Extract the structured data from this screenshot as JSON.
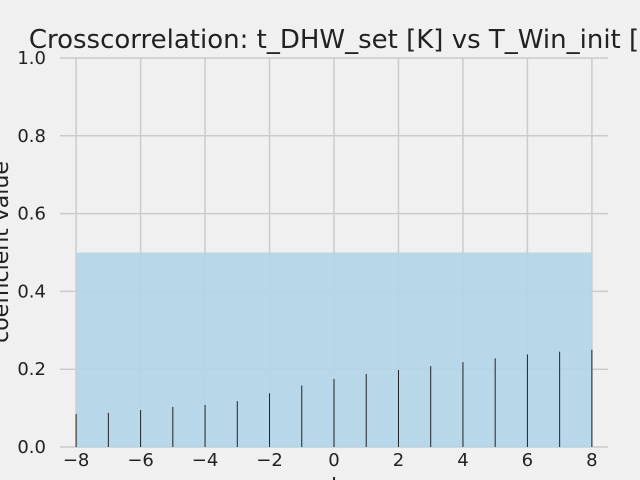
{
  "chart_data": {
    "type": "bar",
    "title": "Crosscorrelation: t_DHW_set [K] vs T_Win_init [",
    "xlabel": "l",
    "ylabel": "coefficient value",
    "xlim": [
      -8.5,
      8.5
    ],
    "ylim": [
      0,
      1.0
    ],
    "x": [
      -8,
      -7,
      -6,
      -5,
      -4,
      -3,
      -2,
      -1,
      0,
      1,
      2,
      3,
      4,
      5,
      6,
      7,
      8
    ],
    "values": [
      0.085,
      0.088,
      0.095,
      0.103,
      0.108,
      0.118,
      0.138,
      0.158,
      0.175,
      0.188,
      0.198,
      0.208,
      0.218,
      0.228,
      0.238,
      0.245,
      0.25
    ],
    "band": {
      "x_range": [
        -8,
        8
      ],
      "y_range": [
        0,
        0.5
      ],
      "color": "#b3d6e8"
    },
    "xticks": [
      -8,
      -6,
      -4,
      -2,
      0,
      2,
      4,
      6,
      8
    ],
    "xtick_labels": [
      "−8",
      "−6",
      "−4",
      "−2",
      "0",
      "2",
      "4",
      "6",
      "8"
    ],
    "yticks": [
      0.0,
      0.2,
      0.4,
      0.6,
      0.8,
      1.0
    ],
    "ytick_labels": [
      "0.0",
      "0.2",
      "0.4",
      "0.6",
      "0.8",
      "1.0"
    ],
    "grid": true,
    "colors": {
      "background": "#f0f0f0",
      "grid": "#cbcbcb",
      "bar": "#222222"
    }
  }
}
